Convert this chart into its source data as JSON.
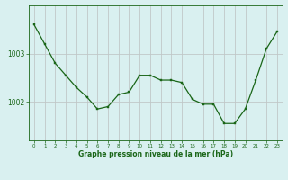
{
  "hours": [
    0,
    1,
    2,
    3,
    4,
    5,
    6,
    7,
    8,
    9,
    10,
    11,
    12,
    13,
    14,
    15,
    16,
    17,
    18,
    19,
    20,
    21,
    22,
    23
  ],
  "pressure": [
    1003.6,
    1003.2,
    1002.8,
    1002.55,
    1002.3,
    1002.1,
    1001.85,
    1001.9,
    1002.15,
    1002.2,
    1002.55,
    1002.55,
    1002.45,
    1002.45,
    1002.4,
    1002.05,
    1001.95,
    1001.95,
    1001.55,
    1001.55,
    1001.85,
    1002.45,
    1003.1,
    1003.45
  ],
  "line_color": "#1a6618",
  "marker_color": "#1a6618",
  "bg_color": "#d9f0f0",
  "grid_color": "#c0c8c8",
  "xlabel": "Graphe pression niveau de la mer (hPa)",
  "xlabel_color": "#1a6618",
  "tick_color": "#1a6618",
  "yticks": [
    1002,
    1003
  ],
  "ylim": [
    1001.2,
    1004.0
  ],
  "xlim": [
    -0.5,
    23.5
  ]
}
